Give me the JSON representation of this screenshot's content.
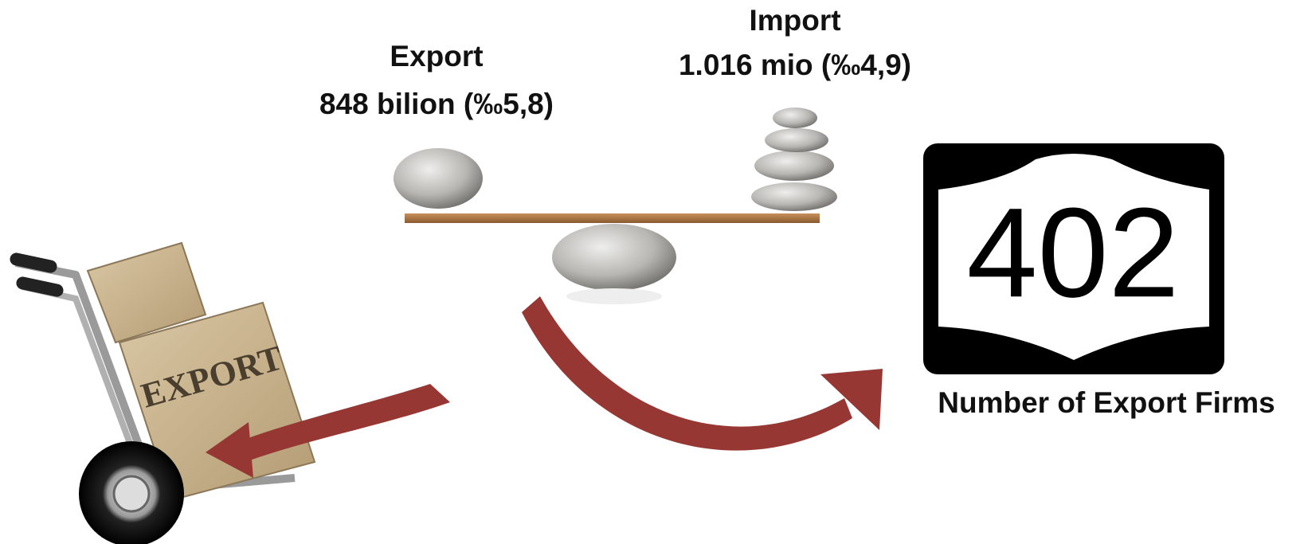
{
  "export": {
    "title": "Export",
    "value": "848 bilion (‰5,8)"
  },
  "import": {
    "title": "Import",
    "value": "1.016 mio (‰4,9)"
  },
  "firms": {
    "number": "402",
    "caption": "Number of Export Firms"
  },
  "box_label": "EXPORT"
}
